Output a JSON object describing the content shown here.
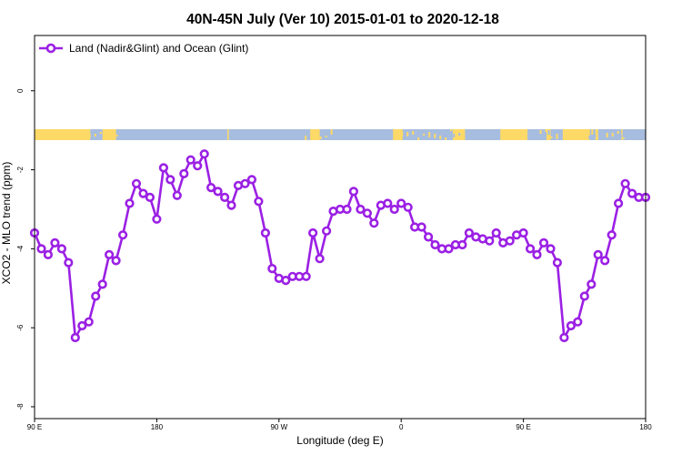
{
  "chart_data": {
    "type": "line",
    "title": "40N-45N July (Ver 10)   2015-01-01 to 2020-12-18",
    "xlabel": "Longitude (deg E)",
    "ylabel": "XCO2 - MLO trend (ppm)",
    "xlim": [
      90,
      540
    ],
    "ylim": [
      -8.3,
      1.4
    ],
    "x_ticks": [
      {
        "value": 90,
        "label": "90 E"
      },
      {
        "value": 180,
        "label": "180"
      },
      {
        "value": 270,
        "label": "90 W"
      },
      {
        "value": 360,
        "label": "0"
      },
      {
        "value": 450,
        "label": "90 E"
      },
      {
        "value": 540,
        "label": "180"
      }
    ],
    "y_ticks": [
      {
        "value": 0,
        "label": "0"
      },
      {
        "value": -2,
        "label": "-2"
      },
      {
        "value": -4,
        "label": "-4"
      },
      {
        "value": -6,
        "label": "-6"
      },
      {
        "value": -8,
        "label": "-8"
      }
    ],
    "grid": false,
    "legend_position": "top-left",
    "series": [
      {
        "name": "Land (Nadir&Glint) and Ocean (Glint)",
        "color": "#9b20e4",
        "x": [
          90,
          95,
          100,
          105,
          110,
          115,
          120,
          125,
          130,
          135,
          140,
          145,
          150,
          155,
          160,
          165,
          170,
          175,
          180,
          185,
          190,
          195,
          200,
          205,
          210,
          215,
          220,
          225,
          230,
          235,
          240,
          245,
          250,
          255,
          260,
          265,
          270,
          275,
          280,
          285,
          290,
          295,
          300,
          305,
          310,
          315,
          320,
          325,
          330,
          335,
          340,
          345,
          350,
          355,
          360,
          365,
          370,
          375,
          380,
          385,
          390,
          395,
          400,
          405,
          410,
          415,
          420,
          425,
          430,
          435,
          440,
          445,
          450,
          455,
          460,
          465,
          470,
          475,
          480,
          485,
          490,
          495,
          500,
          505,
          510,
          515,
          520,
          525,
          530,
          535,
          540
        ],
        "values": [
          -3.6,
          -4.0,
          -4.15,
          -3.85,
          -4.0,
          -4.35,
          -6.25,
          -5.95,
          -5.85,
          -5.2,
          -4.9,
          -4.15,
          -4.3,
          -3.65,
          -2.85,
          -2.35,
          -2.6,
          -2.7,
          -3.25,
          -1.95,
          -2.25,
          -2.65,
          -2.1,
          -1.75,
          -1.9,
          -1.6,
          -2.45,
          -2.55,
          -2.7,
          -2.9,
          -2.4,
          -2.35,
          -2.25,
          -2.8,
          -3.6,
          -4.5,
          -4.75,
          -4.8,
          -4.7,
          -4.7,
          -4.7,
          -3.6,
          -4.25,
          -3.55,
          -3.05,
          -3.0,
          -3.0,
          -2.55,
          -3.0,
          -3.1,
          -3.35,
          -2.9,
          -2.85,
          -3.0,
          -2.85,
          -2.95,
          -3.45,
          -3.45,
          -3.7,
          -3.9,
          -4.0,
          -4.0,
          -3.9,
          -3.9,
          -3.6,
          -3.7,
          -3.75,
          -3.8,
          -3.6,
          -3.85,
          -3.8,
          -3.65,
          -3.6,
          -4.0,
          -4.15,
          -3.85,
          -4.0,
          -4.35,
          -6.25,
          -5.95,
          -5.85,
          -5.2,
          -4.9,
          -4.15,
          -4.3,
          -3.65,
          -2.85,
          -2.35,
          -2.6,
          -2.7,
          -2.7
        ]
      }
    ],
    "surface_band": {
      "land_color": "#fdd967",
      "ocean_color": "#a7bddf",
      "land_ranges": [
        [
          90,
          131
        ],
        [
          140,
          150
        ],
        [
          232,
          233
        ],
        [
          293,
          300
        ],
        [
          354,
          361
        ],
        [
          398,
          407
        ],
        [
          433,
          453
        ],
        [
          467,
          470
        ],
        [
          479,
          499
        ],
        [
          503,
          505
        ],
        [
          522,
          523
        ]
      ],
      "mixed_ranges": [
        [
          130,
          140
        ],
        [
          150,
          154
        ],
        [
          289,
          294
        ],
        [
          300,
          310
        ],
        [
          360,
          404
        ],
        [
          462,
          475
        ],
        [
          496,
          503
        ],
        [
          511,
          526
        ]
      ]
    }
  }
}
